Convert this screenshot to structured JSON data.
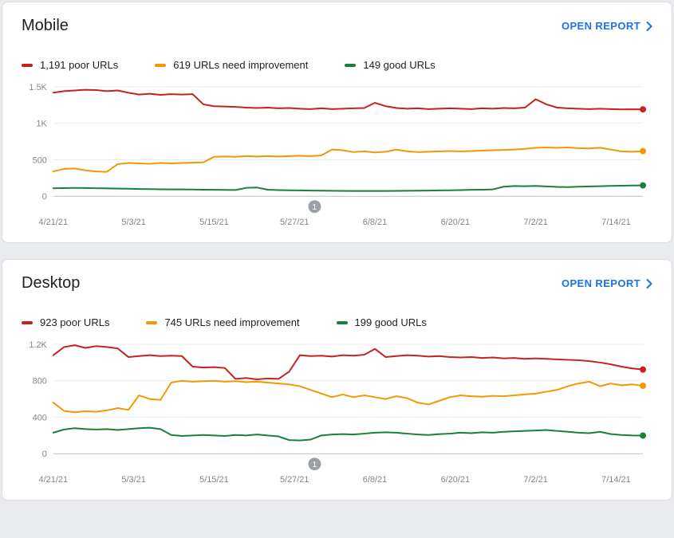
{
  "page": {
    "background": "#e8eaed"
  },
  "cards": [
    {
      "title": "Mobile",
      "open_report_label": "OPEN REPORT",
      "legend": [
        {
          "label": "1,191 poor URLs",
          "color": "#c5221f"
        },
        {
          "label": "619 URLs need improvement",
          "color": "#f29900"
        },
        {
          "label": "149 good URLs",
          "color": "#188038"
        }
      ]
    },
    {
      "title": "Desktop",
      "open_report_label": "OPEN REPORT",
      "legend": [
        {
          "label": "923 poor URLs",
          "color": "#c5221f"
        },
        {
          "label": "745 URLs need improvement",
          "color": "#f29900"
        },
        {
          "label": "199 good URLs",
          "color": "#188038"
        }
      ]
    }
  ],
  "chart_data": [
    {
      "type": "line",
      "title": "Mobile",
      "x_tick_labels": [
        "4/21/21",
        "5/3/21",
        "5/15/21",
        "5/27/21",
        "6/8/21",
        "6/20/21",
        "7/2/21",
        "7/14/21"
      ],
      "x_tick_days": [
        0,
        12,
        24,
        36,
        48,
        60,
        72,
        84
      ],
      "x_span_days": 88,
      "ylim": [
        0,
        1500
      ],
      "y_ticks": [
        0,
        500,
        1000,
        1500
      ],
      "y_tick_labels": [
        "0",
        "500",
        "1K",
        "1.5K"
      ],
      "grid": true,
      "legend_position": "top",
      "annotation": {
        "label": "1",
        "day": 39
      },
      "series": [
        {
          "name": "poor URLs",
          "color": "#c5221f",
          "values": [
            1420,
            1440,
            1450,
            1460,
            1455,
            1440,
            1450,
            1420,
            1395,
            1405,
            1390,
            1400,
            1395,
            1400,
            1260,
            1235,
            1230,
            1225,
            1215,
            1210,
            1215,
            1205,
            1210,
            1200,
            1195,
            1205,
            1195,
            1200,
            1205,
            1210,
            1280,
            1235,
            1210,
            1200,
            1205,
            1195,
            1200,
            1205,
            1200,
            1195,
            1205,
            1200,
            1210,
            1205,
            1215,
            1330,
            1260,
            1215,
            1205,
            1200,
            1195,
            1200,
            1195,
            1190,
            1192,
            1191
          ]
        },
        {
          "name": "URLs need improvement",
          "color": "#f29900",
          "values": [
            340,
            375,
            380,
            355,
            340,
            335,
            440,
            455,
            450,
            445,
            455,
            450,
            455,
            460,
            465,
            540,
            545,
            540,
            550,
            545,
            550,
            545,
            550,
            555,
            550,
            560,
            640,
            630,
            605,
            615,
            600,
            610,
            640,
            615,
            605,
            610,
            615,
            620,
            615,
            620,
            625,
            630,
            635,
            640,
            650,
            665,
            670,
            665,
            670,
            660,
            655,
            665,
            640,
            615,
            610,
            619
          ]
        },
        {
          "name": "good URLs",
          "color": "#188038",
          "values": [
            110,
            112,
            115,
            113,
            110,
            108,
            105,
            103,
            100,
            98,
            96,
            95,
            93,
            92,
            90,
            88,
            87,
            86,
            115,
            120,
            90,
            85,
            82,
            80,
            78,
            76,
            75,
            74,
            73,
            72,
            72,
            73,
            74,
            75,
            76,
            78,
            80,
            82,
            85,
            88,
            90,
            95,
            130,
            140,
            138,
            142,
            135,
            128,
            125,
            130,
            135,
            138,
            142,
            145,
            147,
            149
          ]
        }
      ]
    },
    {
      "type": "line",
      "title": "Desktop",
      "x_tick_labels": [
        "4/21/21",
        "5/3/21",
        "5/15/21",
        "5/27/21",
        "6/8/21",
        "6/20/21",
        "7/2/21",
        "7/14/21"
      ],
      "x_tick_days": [
        0,
        12,
        24,
        36,
        48,
        60,
        72,
        84
      ],
      "x_span_days": 88,
      "ylim": [
        0,
        1200
      ],
      "y_ticks": [
        0,
        400,
        800,
        1200
      ],
      "y_tick_labels": [
        "0",
        "400",
        "800",
        "1.2K"
      ],
      "grid": true,
      "legend_position": "top",
      "annotation": {
        "label": "1",
        "day": 39
      },
      "series": [
        {
          "name": "poor URLs",
          "color": "#c5221f",
          "values": [
            1080,
            1170,
            1190,
            1160,
            1180,
            1170,
            1155,
            1060,
            1070,
            1080,
            1070,
            1075,
            1070,
            955,
            945,
            950,
            940,
            820,
            830,
            815,
            825,
            820,
            900,
            1080,
            1070,
            1075,
            1065,
            1080,
            1075,
            1085,
            1150,
            1060,
            1070,
            1080,
            1075,
            1065,
            1070,
            1060,
            1055,
            1060,
            1050,
            1055,
            1045,
            1050,
            1040,
            1045,
            1040,
            1035,
            1030,
            1025,
            1015,
            1000,
            980,
            955,
            935,
            923
          ]
        },
        {
          "name": "URLs need improvement",
          "color": "#f29900",
          "values": [
            560,
            470,
            455,
            465,
            460,
            475,
            500,
            480,
            640,
            600,
            590,
            780,
            800,
            790,
            795,
            800,
            790,
            795,
            785,
            790,
            780,
            770,
            760,
            740,
            700,
            660,
            620,
            650,
            620,
            640,
            620,
            600,
            630,
            610,
            560,
            540,
            580,
            620,
            640,
            630,
            625,
            635,
            630,
            640,
            650,
            660,
            680,
            700,
            740,
            770,
            790,
            740,
            770,
            750,
            760,
            745
          ]
        },
        {
          "name": "good URLs",
          "color": "#188038",
          "values": [
            230,
            265,
            280,
            270,
            265,
            270,
            260,
            270,
            280,
            285,
            270,
            205,
            195,
            200,
            205,
            200,
            195,
            205,
            200,
            210,
            200,
            190,
            150,
            145,
            155,
            200,
            210,
            215,
            210,
            220,
            230,
            235,
            230,
            220,
            210,
            205,
            215,
            220,
            230,
            225,
            235,
            230,
            240,
            245,
            250,
            255,
            260,
            250,
            240,
            230,
            225,
            240,
            215,
            205,
            200,
            199
          ]
        }
      ]
    }
  ]
}
